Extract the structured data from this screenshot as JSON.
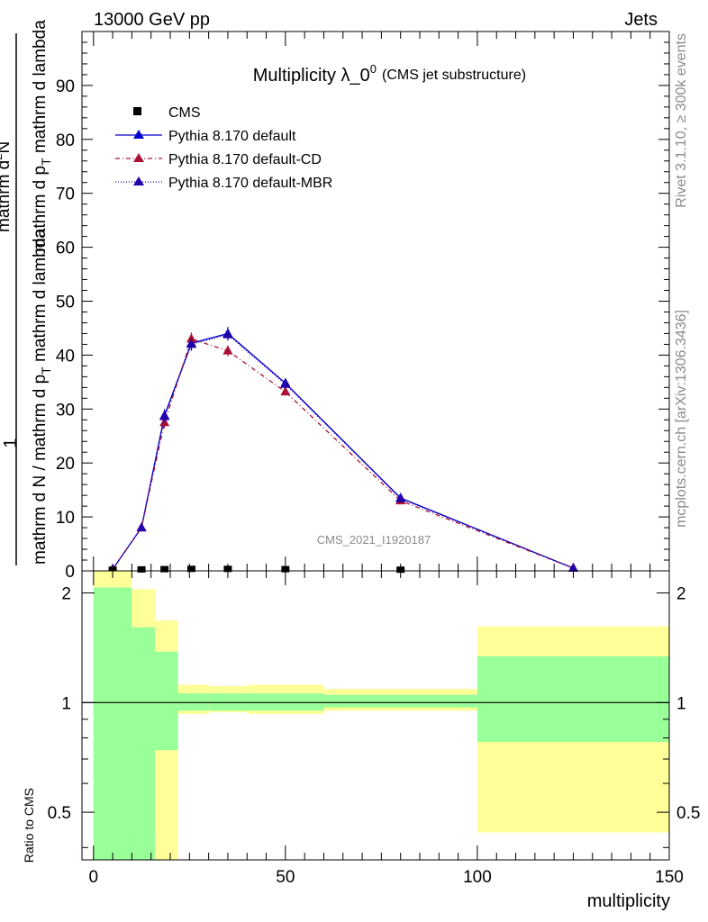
{
  "header": {
    "energy_label": "13000 GeV pp",
    "category_label": "Jets"
  },
  "side_text": {
    "rivet": "Rivet 3.1.10, ≥ 300k events",
    "source": "mcplots.cern.ch [arXiv:1306.3436]"
  },
  "colors": {
    "cms": "#000000",
    "default": "#0000cc",
    "cd": "#aa1133",
    "mbr": "#2200aa",
    "band_inner": "#99ff99",
    "band_outer": "#ffff99"
  },
  "chart_data": [
    {
      "type": "line",
      "title_main": "Multiplicity λ_0",
      "title_sup": "0",
      "title_paren": "(CMS jet substructure)",
      "ylabel_parts": {
        "one": "1",
        "den": "mathrm d N / mathrm d p",
        "den_sub": "T",
        "den_tail": "mathrm d lambda",
        "num": "mathrm d",
        "num_sup": "2",
        "num_mid": "N",
        "num_2": "mathrm d p",
        "num_2_sub": "T",
        "num_3": "mathrm d lambda"
      },
      "ylim": [
        0,
        100
      ],
      "xlim": [
        -3,
        150
      ],
      "yticks": [
        "0",
        "10",
        "20",
        "30",
        "40",
        "50",
        "60",
        "70",
        "80",
        "90"
      ],
      "analysis_tag": "CMS_2021_I1920187",
      "legend": [
        {
          "label": "CMS"
        },
        {
          "label": "Pythia 8.170 default"
        },
        {
          "label": "Pythia 8.170 default-CD"
        },
        {
          "label": "Pythia 8.170 default-MBR"
        }
      ],
      "series": [
        {
          "name": "CMS",
          "x": [
            5,
            12.5,
            18.5,
            25.5,
            35,
            50,
            80,
            125
          ],
          "values": [
            0.05,
            0.1,
            0.15,
            0.2,
            0.2,
            0.15,
            0.05,
            0.0
          ]
        },
        {
          "name": "Pythia 8.170 default",
          "x": [
            5,
            12.5,
            18.5,
            25.5,
            35,
            50,
            80,
            125
          ],
          "values": [
            0.3,
            8.0,
            28.8,
            42.2,
            44.0,
            34.8,
            13.5,
            0.5
          ],
          "errors": [
            0.2,
            0.5,
            1.2,
            1.3,
            1.2,
            0.8,
            0.5,
            0.1
          ]
        },
        {
          "name": "Pythia 8.170 default-CD",
          "x": [
            5,
            12.5,
            18.5,
            25.5,
            35,
            50,
            80,
            125
          ],
          "values": [
            0.3,
            8.0,
            27.5,
            43.0,
            40.8,
            33.2,
            13.0,
            0.5
          ],
          "errors": [
            0.2,
            0.5,
            1.0,
            1.2,
            1.0,
            0.7,
            0.5,
            0.1
          ]
        },
        {
          "name": "Pythia 8.170 default-MBR",
          "x": [
            5,
            12.5,
            18.5,
            25.5,
            35,
            50,
            80,
            125
          ],
          "values": [
            0.3,
            8.0,
            28.6,
            42.0,
            43.8,
            34.6,
            13.4,
            0.5
          ],
          "errors": [
            0.2,
            0.5,
            1.1,
            1.2,
            1.1,
            0.8,
            0.5,
            0.1
          ]
        }
      ]
    },
    {
      "type": "area",
      "ylabel": "Ratio to CMS",
      "xlabel": "multiplicity",
      "ylim": [
        0.37,
        2.3
      ],
      "xlim": [
        -3,
        150
      ],
      "xticks": [
        "0",
        "50",
        "100",
        "150"
      ],
      "yticks_left": [
        "0.5",
        "1",
        "2"
      ],
      "yticks_right": [
        "0.5",
        "1",
        "2"
      ],
      "bins": [
        {
          "x0": 0,
          "x1": 10,
          "inner": [
            0.37,
            2.07
          ],
          "outer": [
            0.37,
            2.3
          ]
        },
        {
          "x0": 10,
          "x1": 16,
          "inner": [
            0.37,
            1.61
          ],
          "outer": [
            0.44,
            2.05
          ]
        },
        {
          "x0": 16,
          "x1": 22,
          "inner": [
            0.74,
            1.38
          ],
          "outer": [
            0.37,
            1.68
          ]
        },
        {
          "x0": 22,
          "x1": 30,
          "inner": [
            0.95,
            1.06
          ],
          "outer": [
            0.93,
            1.12
          ]
        },
        {
          "x0": 30,
          "x1": 40,
          "inner": [
            0.95,
            1.06
          ],
          "outer": [
            0.94,
            1.11
          ]
        },
        {
          "x0": 40,
          "x1": 60,
          "inner": [
            0.95,
            1.06
          ],
          "outer": [
            0.93,
            1.12
          ]
        },
        {
          "x0": 60,
          "x1": 100,
          "inner": [
            0.97,
            1.05
          ],
          "outer": [
            0.95,
            1.09
          ]
        },
        {
          "x0": 100,
          "x1": 150,
          "inner": [
            0.78,
            1.34
          ],
          "outer": [
            0.44,
            1.62
          ]
        }
      ]
    }
  ]
}
